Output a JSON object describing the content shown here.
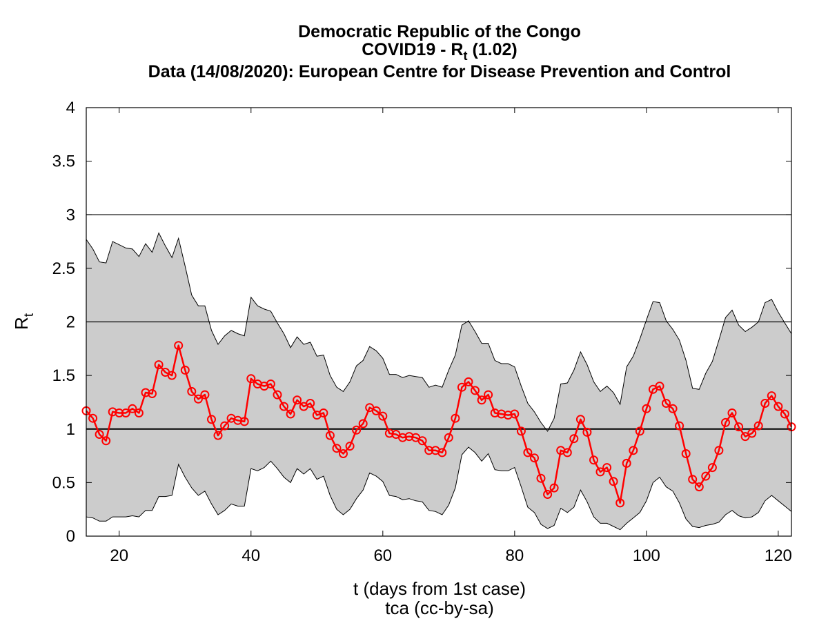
{
  "chart_data": {
    "type": "line",
    "title": {
      "line1": "Democratic Republic of the Congo",
      "line2_prefix": "COVID19 - R",
      "line2_sub": "t",
      "line2_suffix": " (1.02)",
      "line3": "Data (14/08/2020): European Centre for Disease Prevention and Control"
    },
    "xlabel": "t (days from 1st case)",
    "credit": "tca (cc-by-sa)",
    "ylabel_main": "R",
    "ylabel_sub": "t",
    "xlim": [
      15,
      122
    ],
    "ylim": [
      0,
      4
    ],
    "xticks": [
      20,
      40,
      60,
      80,
      100,
      120
    ],
    "yticks": [
      0,
      0.5,
      1,
      1.5,
      2,
      2.5,
      3,
      3.5,
      4
    ],
    "ytick_labels": [
      "0",
      "0.5",
      "1",
      "1.5",
      "2",
      "2.5",
      "3",
      "3.5",
      "4"
    ],
    "reference_lines": [
      1,
      2,
      3
    ],
    "grid": false,
    "colors": {
      "series": "#ff0000",
      "band": "#cccccc",
      "axes": "#000000"
    },
    "x": [
      15,
      16,
      17,
      18,
      19,
      20,
      21,
      22,
      23,
      24,
      25,
      26,
      27,
      28,
      29,
      30,
      31,
      32,
      33,
      34,
      35,
      36,
      37,
      38,
      39,
      40,
      41,
      42,
      43,
      44,
      45,
      46,
      47,
      48,
      49,
      50,
      51,
      52,
      53,
      54,
      55,
      56,
      57,
      58,
      59,
      60,
      61,
      62,
      63,
      64,
      65,
      66,
      67,
      68,
      69,
      70,
      71,
      72,
      73,
      74,
      75,
      76,
      77,
      78,
      79,
      80,
      81,
      82,
      83,
      84,
      85,
      86,
      87,
      88,
      89,
      90,
      91,
      92,
      93,
      94,
      95,
      96,
      97,
      98,
      99,
      100,
      101,
      102,
      103,
      104,
      105,
      106,
      107,
      108,
      109,
      110,
      111,
      112,
      113,
      114,
      115,
      116,
      117,
      118,
      119,
      120,
      121,
      122
    ],
    "series": [
      {
        "values": [
          1.17,
          1.1,
          0.95,
          0.89,
          1.16,
          1.15,
          1.15,
          1.19,
          1.15,
          1.34,
          1.33,
          1.6,
          1.53,
          1.5,
          1.78,
          1.55,
          1.35,
          1.28,
          1.32,
          1.09,
          0.94,
          1.03,
          1.1,
          1.08,
          1.07,
          1.47,
          1.42,
          1.4,
          1.42,
          1.32,
          1.21,
          1.14,
          1.27,
          1.21,
          1.24,
          1.13,
          1.15,
          0.94,
          0.82,
          0.77,
          0.84,
          0.99,
          1.05,
          1.2,
          1.17,
          1.12,
          0.96,
          0.95,
          0.92,
          0.93,
          0.92,
          0.89,
          0.8,
          0.8,
          0.78,
          0.92,
          1.1,
          1.39,
          1.44,
          1.36,
          1.27,
          1.32,
          1.15,
          1.14,
          1.13,
          1.14,
          0.98,
          0.78,
          0.73,
          0.54,
          0.39,
          0.45,
          0.8,
          0.78,
          0.91,
          1.09,
          0.97,
          0.71,
          0.6,
          0.64,
          0.51,
          0.31,
          0.68,
          0.8,
          0.98,
          1.19,
          1.37,
          1.4,
          1.24,
          1.19,
          1.03,
          0.77,
          0.53,
          0.46,
          0.56,
          0.64,
          0.8,
          1.06,
          1.15,
          1.02,
          0.93,
          0.96,
          1.03,
          1.24,
          1.31,
          1.21,
          1.14,
          1.02
        ],
        "lower": [
          0.18,
          0.17,
          0.14,
          0.14,
          0.18,
          0.18,
          0.18,
          0.19,
          0.18,
          0.24,
          0.24,
          0.37,
          0.37,
          0.38,
          0.67,
          0.55,
          0.45,
          0.38,
          0.42,
          0.3,
          0.2,
          0.24,
          0.3,
          0.28,
          0.28,
          0.63,
          0.61,
          0.64,
          0.7,
          0.63,
          0.55,
          0.5,
          0.63,
          0.58,
          0.63,
          0.53,
          0.56,
          0.38,
          0.25,
          0.2,
          0.25,
          0.35,
          0.43,
          0.59,
          0.56,
          0.51,
          0.38,
          0.37,
          0.34,
          0.35,
          0.33,
          0.32,
          0.24,
          0.23,
          0.2,
          0.29,
          0.45,
          0.76,
          0.83,
          0.78,
          0.7,
          0.77,
          0.62,
          0.61,
          0.61,
          0.64,
          0.46,
          0.27,
          0.22,
          0.11,
          0.07,
          0.1,
          0.26,
          0.22,
          0.27,
          0.43,
          0.32,
          0.18,
          0.12,
          0.12,
          0.09,
          0.06,
          0.12,
          0.17,
          0.22,
          0.33,
          0.5,
          0.55,
          0.46,
          0.42,
          0.31,
          0.16,
          0.09,
          0.08,
          0.1,
          0.11,
          0.13,
          0.2,
          0.24,
          0.19,
          0.17,
          0.18,
          0.22,
          0.33,
          0.38,
          0.33,
          0.28,
          0.23
        ],
        "upper": [
          2.77,
          2.68,
          2.56,
          2.55,
          2.75,
          2.72,
          2.69,
          2.68,
          2.61,
          2.73,
          2.65,
          2.83,
          2.71,
          2.6,
          2.78,
          2.52,
          2.25,
          2.15,
          2.15,
          1.92,
          1.79,
          1.87,
          1.92,
          1.89,
          1.87,
          2.23,
          2.15,
          2.12,
          2.1,
          1.99,
          1.89,
          1.76,
          1.86,
          1.79,
          1.81,
          1.68,
          1.69,
          1.5,
          1.39,
          1.35,
          1.44,
          1.59,
          1.64,
          1.77,
          1.73,
          1.66,
          1.51,
          1.51,
          1.48,
          1.5,
          1.49,
          1.48,
          1.39,
          1.41,
          1.39,
          1.55,
          1.69,
          1.97,
          2.01,
          1.91,
          1.8,
          1.8,
          1.64,
          1.61,
          1.61,
          1.58,
          1.4,
          1.24,
          1.16,
          1.06,
          0.98,
          1.1,
          1.42,
          1.43,
          1.55,
          1.72,
          1.6,
          1.44,
          1.35,
          1.4,
          1.34,
          1.23,
          1.58,
          1.68,
          1.84,
          2.02,
          2.19,
          2.18,
          2.01,
          1.93,
          1.83,
          1.64,
          1.38,
          1.37,
          1.52,
          1.63,
          1.83,
          2.04,
          2.11,
          1.97,
          1.91,
          1.95,
          2.0,
          2.18,
          2.21,
          2.09,
          1.99,
          1.89
        ]
      }
    ]
  }
}
